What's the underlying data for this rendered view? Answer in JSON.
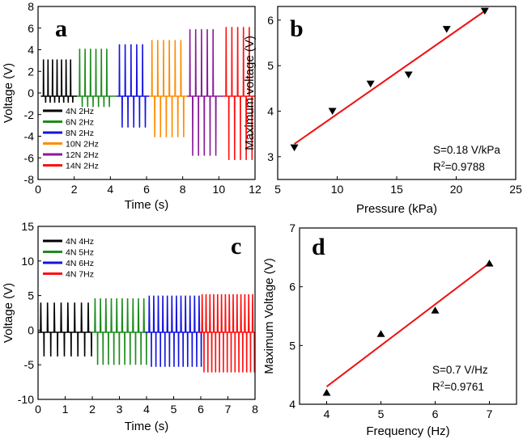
{
  "chart_data": [
    {
      "panel": "a",
      "type": "line",
      "xlabel": "Time (s)",
      "ylabel": "Voltage (V)",
      "xlim": [
        0,
        12
      ],
      "ylim": [
        -8,
        8
      ],
      "xticks": [
        0,
        2,
        4,
        6,
        8,
        10,
        12
      ],
      "yticks": [
        -8,
        -6,
        -4,
        -2,
        0,
        2,
        4,
        6,
        8
      ],
      "legend_position": "bottom-left",
      "series": [
        {
          "name": "4N 2Hz",
          "color": "#000000",
          "t_start": 0.3,
          "t_end": 1.85,
          "period": 0.25,
          "peak": 3.1,
          "trough": -0.9
        },
        {
          "name": "6N 2Hz",
          "color": "#1e8c1e",
          "t_start": 2.3,
          "t_end": 3.9,
          "period": 0.3,
          "peak": 4.1,
          "trough": -1.3
        },
        {
          "name": "8N 2Hz",
          "color": "#1414e0",
          "t_start": 4.5,
          "t_end": 5.95,
          "period": 0.32,
          "peak": 4.5,
          "trough": -3.2
        },
        {
          "name": "10N 2Hz",
          "color": "#ff8c00",
          "t_start": 6.3,
          "t_end": 7.95,
          "period": 0.32,
          "peak": 4.9,
          "trough": -4.1
        },
        {
          "name": "12N 2Hz",
          "color": "#8b1a9b",
          "t_start": 8.4,
          "t_end": 9.9,
          "period": 0.32,
          "peak": 5.9,
          "trough": -5.8
        },
        {
          "name": "14N 2Hz",
          "color": "#ff1010",
          "t_start": 10.4,
          "t_end": 11.9,
          "period": 0.32,
          "peak": 6.1,
          "trough": -6.2
        }
      ]
    },
    {
      "panel": "b",
      "type": "scatter",
      "xlabel": "Pressure (kPa)",
      "ylabel": "Maximum voltage (V)",
      "xlim": [
        5,
        25
      ],
      "ylim": [
        2.5,
        6.3
      ],
      "xticks": [
        5,
        10,
        15,
        20,
        25
      ],
      "yticks": [
        3,
        4,
        5,
        6
      ],
      "marker": "triangle-down",
      "points": {
        "x": [
          6.4,
          9.6,
          12.8,
          16.0,
          19.2,
          22.4
        ],
        "y": [
          3.2,
          4.0,
          4.6,
          4.8,
          5.8,
          6.2
        ]
      },
      "fit": {
        "x": [
          6.4,
          22.4
        ],
        "y": [
          3.28,
          6.2
        ],
        "color": "#ee1111"
      },
      "annotation": {
        "sensitivity": "S=0.18 V/kPa",
        "r2_prefix": "R",
        "r2_sup": "2",
        "r2_value": "=0.9788"
      }
    },
    {
      "panel": "c",
      "type": "line",
      "xlabel": "Time (s)",
      "ylabel": "Voltage (V)",
      "xlim": [
        0,
        8
      ],
      "ylim": [
        -10,
        15
      ],
      "xticks": [
        0,
        1,
        2,
        3,
        4,
        5,
        6,
        7,
        8
      ],
      "yticks": [
        -10,
        -5,
        0,
        5,
        10,
        15
      ],
      "legend_position": "top-left",
      "series": [
        {
          "name": "4N 4Hz",
          "color": "#000000",
          "t_start": 0.1,
          "t_end": 1.95,
          "period": 0.25,
          "peak": 4.0,
          "trough": -3.8
        },
        {
          "name": "4N 5Hz",
          "color": "#1e8c1e",
          "t_start": 2.1,
          "t_end": 3.95,
          "period": 0.2,
          "peak": 4.6,
          "trough": -5.0
        },
        {
          "name": "4N 6Hz",
          "color": "#1414e0",
          "t_start": 4.1,
          "t_end": 5.95,
          "period": 0.167,
          "peak": 5.0,
          "trough": -5.3
        },
        {
          "name": "4N 7Hz",
          "color": "#ff1010",
          "t_start": 6.05,
          "t_end": 7.95,
          "period": 0.143,
          "peak": 5.2,
          "trough": -6.1
        }
      ]
    },
    {
      "panel": "d",
      "type": "scatter",
      "xlabel": "Frequency (Hz)",
      "ylabel": "Maximum Voltage (V)",
      "xlim": [
        3.5,
        7.5
      ],
      "ylim": [
        4,
        7
      ],
      "xticks": [
        4,
        5,
        6,
        7
      ],
      "yticks": [
        4,
        5,
        6,
        7
      ],
      "marker": "triangle-up",
      "points": {
        "x": [
          4,
          5,
          6,
          7
        ],
        "y": [
          4.2,
          5.2,
          5.6,
          6.4
        ]
      },
      "fit": {
        "x": [
          4,
          7
        ],
        "y": [
          4.3,
          6.4
        ],
        "color": "#ee1111"
      },
      "annotation": {
        "sensitivity": "S=0.7 V/Hz",
        "r2_prefix": "R",
        "r2_sup": "2",
        "r2_value": "=0.9761"
      }
    }
  ]
}
